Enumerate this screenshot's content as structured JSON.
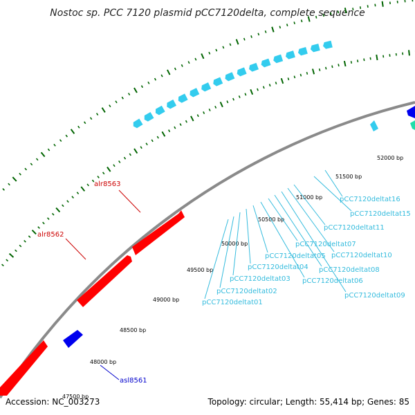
{
  "title": "Nostoc sp. PCC 7120 plasmid pCC7120delta, complete sequence",
  "footer": {
    "accession": "Accession: NC_003273",
    "summary": "Topology: circular; Length: 55,414 bp; Genes: 85"
  },
  "colors": {
    "backbone": "#8a8a8a",
    "forward_gene": "#ff0000",
    "reverse_gene": "#0000ee",
    "repeat": "#33ccee",
    "tick": "#006400",
    "label_red": "#cc0000",
    "label_blue": "#0000cc",
    "label_cyan": "#33bbdd"
  },
  "tick_labels": [
    "47500 bp",
    "48000 bp",
    "48500 bp",
    "49000 bp",
    "49500 bp",
    "50000 bp",
    "50500 bp",
    "51000 bp",
    "51500 bp",
    "52000 bp"
  ],
  "gene_labels": {
    "alr8563": "alr8563",
    "alr8562": "alr8562",
    "asl8561": "asl8561"
  },
  "repeat_labels": [
    "pCC7120deltat01",
    "pCC7120deltat02",
    "pCC7120deltat03",
    "pCC7120deltat04",
    "pCC7120deltat05",
    "pCC7120deltat06",
    "pCC7120deltat07",
    "pCC7120deltat08",
    "pCC7120deltat09",
    "pCC7120deltat10",
    "pCC7120deltat11",
    "pCC7120deltat15",
    "pCC7120deltat16"
  ]
}
